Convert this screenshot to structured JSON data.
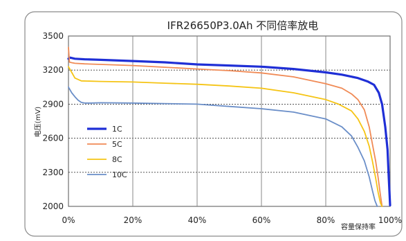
{
  "chart_data": {
    "type": "line",
    "title": "IFR26650P3.0Ah 不同倍率放电",
    "xlabel": "容量保持率",
    "ylabel": "电压(mV)",
    "xlim": [
      0,
      100
    ],
    "ylim": [
      2000,
      3500
    ],
    "x_ticks": [
      "0%",
      "20%",
      "40%",
      "60%",
      "80%",
      "100%"
    ],
    "y_ticks": [
      "2000",
      "2300",
      "2600",
      "2900",
      "3200",
      "3500"
    ],
    "x_tick_values": [
      0,
      20,
      40,
      60,
      80,
      100
    ],
    "y_tick_values": [
      2000,
      2300,
      2600,
      2900,
      3200,
      3500
    ],
    "grid": "horizontal-dashed",
    "legend_position": "left-middle",
    "series": [
      {
        "name": "1C",
        "color": "#1f2fd6",
        "width": 3.2,
        "x": [
          0,
          0.5,
          2,
          5,
          10,
          20,
          30,
          40,
          50,
          60,
          70,
          80,
          85,
          90,
          93,
          95,
          96.5,
          97.5,
          98.5,
          99.2,
          99.6,
          100
        ],
        "y": [
          3300,
          3310,
          3300,
          3295,
          3290,
          3280,
          3268,
          3250,
          3240,
          3230,
          3210,
          3180,
          3160,
          3130,
          3100,
          3070,
          3000,
          2900,
          2700,
          2500,
          2250,
          2010
        ]
      },
      {
        "name": "5C",
        "color": "#f08a55",
        "width": 1.8,
        "x": [
          0,
          0.3,
          1,
          2,
          5,
          10,
          20,
          30,
          40,
          50,
          60,
          70,
          80,
          85,
          88,
          90,
          92,
          93.5,
          94.5,
          95.5,
          96.3,
          97,
          97.5
        ],
        "y": [
          3400,
          3270,
          3265,
          3260,
          3255,
          3250,
          3240,
          3225,
          3210,
          3195,
          3175,
          3140,
          3080,
          3040,
          2990,
          2940,
          2850,
          2700,
          2550,
          2400,
          2250,
          2100,
          2000
        ]
      },
      {
        "name": "8C",
        "color": "#f5c414",
        "width": 1.8,
        "x": [
          0,
          1,
          2,
          4,
          10,
          20,
          30,
          40,
          50,
          60,
          70,
          80,
          84,
          88,
          90,
          92,
          93.5,
          94.5,
          95.5,
          96.3,
          97,
          97.5
        ],
        "y": [
          3230,
          3180,
          3130,
          3105,
          3100,
          3095,
          3085,
          3075,
          3060,
          3040,
          3000,
          2940,
          2900,
          2840,
          2770,
          2660,
          2530,
          2400,
          2250,
          2120,
          2030,
          2000
        ]
      },
      {
        "name": "10C",
        "color": "#6a8ec8",
        "width": 1.8,
        "x": [
          0,
          1,
          2,
          3,
          4,
          5,
          7,
          10,
          20,
          30,
          40,
          50,
          60,
          70,
          80,
          85,
          88,
          90,
          92,
          93.5,
          94.5,
          95.3,
          96
        ],
        "y": [
          3050,
          3000,
          2965,
          2935,
          2915,
          2910,
          2910,
          2912,
          2910,
          2905,
          2900,
          2880,
          2860,
          2830,
          2770,
          2700,
          2620,
          2520,
          2400,
          2260,
          2140,
          2050,
          2000
        ]
      }
    ]
  }
}
